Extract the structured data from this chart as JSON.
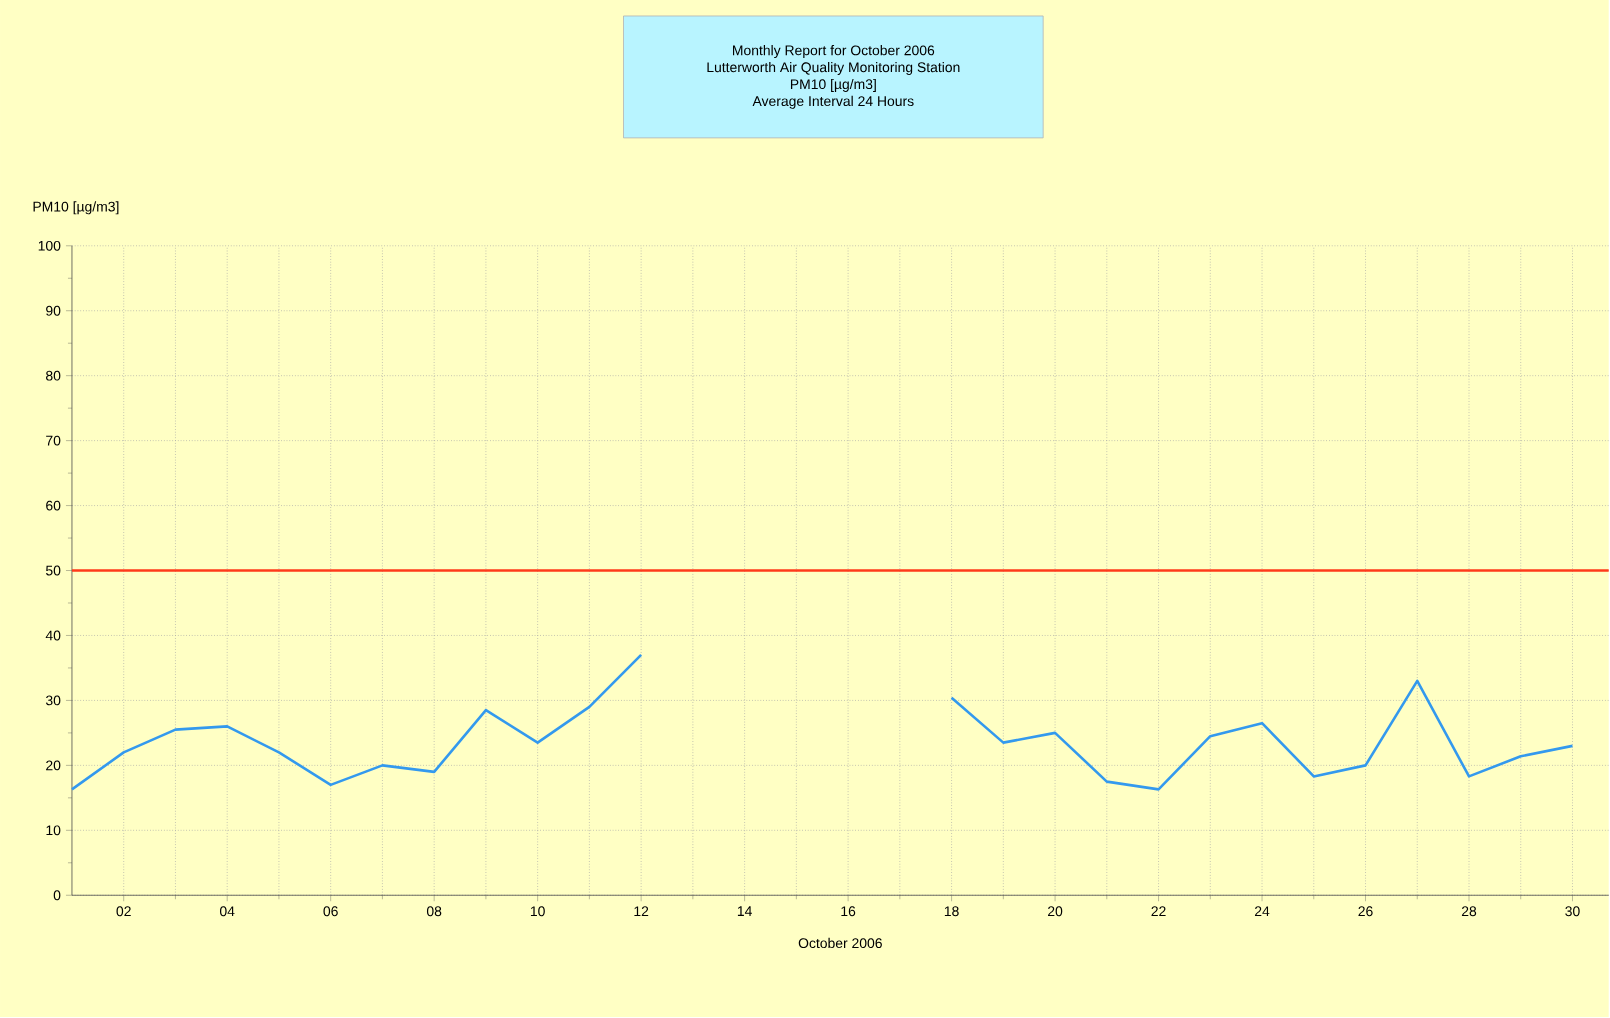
{
  "chart_data": {
    "type": "line",
    "title": "Monthly Report for October 2006",
    "subtitle": "Lutterworth Air Quality Monitoring Station",
    "annotations": [
      "PM10 [µg/m3]",
      "Average Interval 24 Hours"
    ],
    "xlabel": "October 2006",
    "ylabel": "PM10 [µg/m3]",
    "x": [
      1,
      2,
      3,
      4,
      5,
      6,
      7,
      8,
      9,
      10,
      11,
      12,
      13,
      14,
      15,
      16,
      17,
      18,
      19,
      20,
      21,
      22,
      23,
      24,
      25,
      26,
      27,
      28,
      29,
      30
    ],
    "series": [
      {
        "color": "#3399ee",
        "values": [
          16.3,
          22,
          25.5,
          26,
          22,
          17,
          20,
          19,
          28.5,
          23.5,
          29,
          37,
          null,
          null,
          null,
          null,
          null,
          30.4,
          23.5,
          25,
          17.5,
          16.3,
          24.5,
          26.5,
          18.3,
          20,
          33,
          18.3,
          21.4,
          23
        ]
      }
    ],
    "xlim": [
      1,
      30.7
    ],
    "ylim": [
      0,
      100
    ],
    "xticks": [
      {
        "value": 2,
        "label": "02"
      },
      {
        "value": 4,
        "label": "04"
      },
      {
        "value": 6,
        "label": "06"
      },
      {
        "value": 8,
        "label": "08"
      },
      10,
      12,
      14,
      16,
      18,
      20,
      22,
      24,
      26,
      28,
      30
    ],
    "yticks": [
      0,
      10,
      20,
      30,
      40,
      50,
      60,
      70,
      80,
      90,
      100
    ],
    "ref_lines": [
      {
        "axis": "y",
        "value": 50,
        "color": "#ff3a1a"
      }
    ],
    "grid": true,
    "marker": "none",
    "line_style": "solid"
  }
}
